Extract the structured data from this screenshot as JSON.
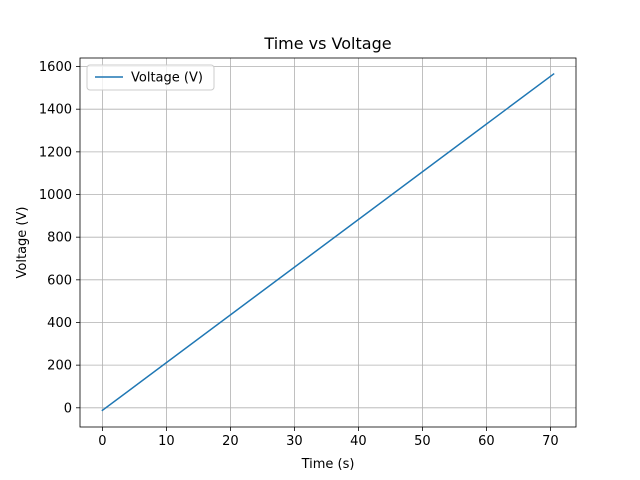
{
  "chart_data": {
    "type": "line",
    "title": "Time vs Voltage",
    "xlabel": "Time (s)",
    "ylabel": "Voltage (V)",
    "xlim": [
      -3.5,
      74
    ],
    "ylim": [
      -90,
      1640
    ],
    "xticks": [
      0,
      10,
      20,
      30,
      40,
      50,
      60,
      70
    ],
    "yticks": [
      0,
      200,
      400,
      600,
      800,
      1000,
      1200,
      1400,
      1600
    ],
    "grid": true,
    "legend_position": "top-left",
    "series": [
      {
        "name": "Voltage (V)",
        "color": "#1f77b4",
        "x": [
          0,
          70.5
        ],
        "y": [
          -12,
          1565
        ]
      }
    ]
  }
}
